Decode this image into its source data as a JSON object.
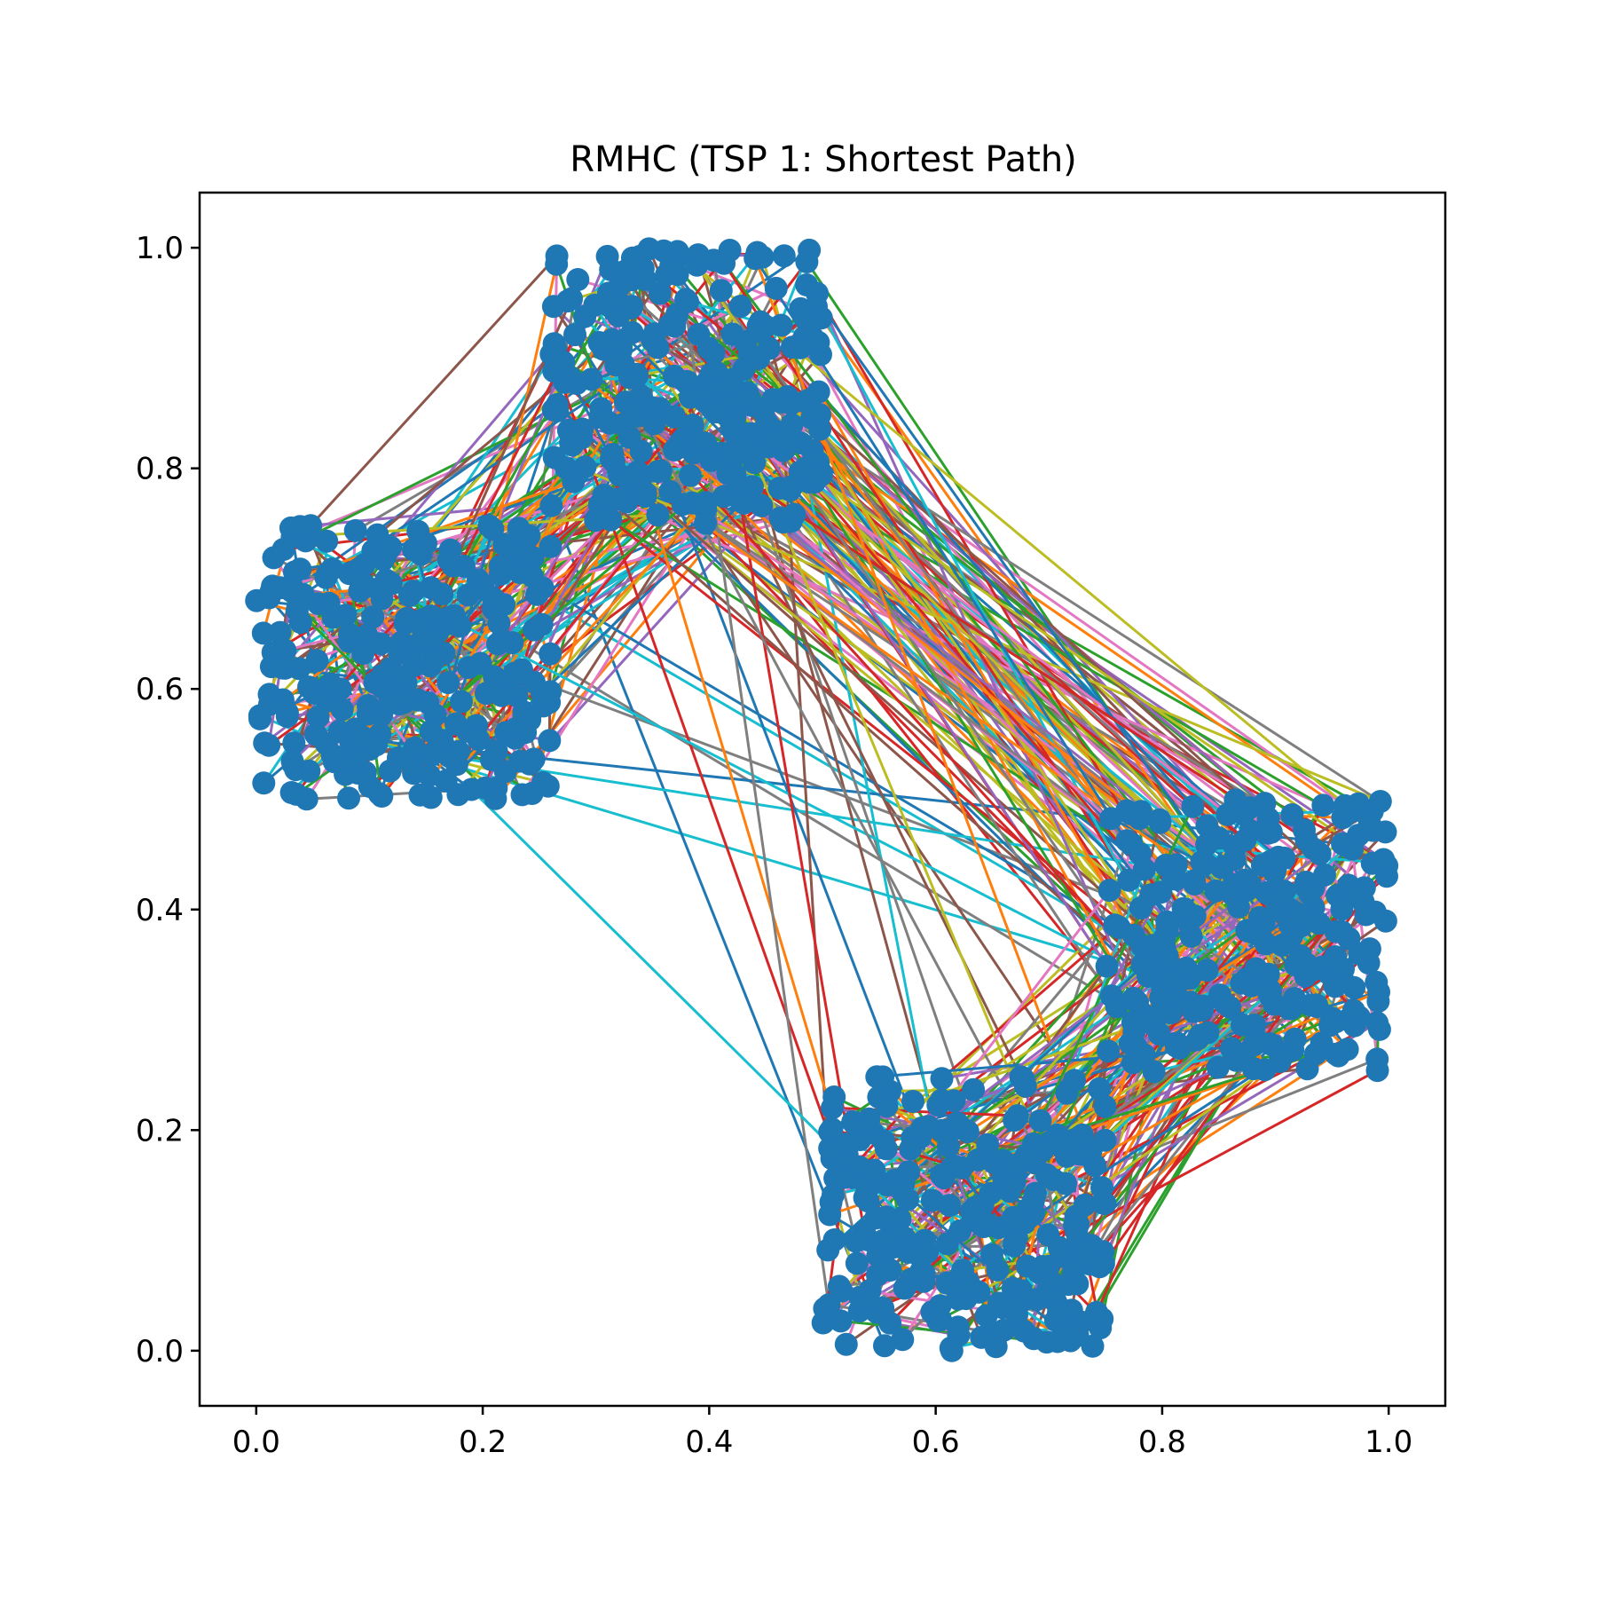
{
  "chart_data": {
    "type": "line",
    "title": "RMHC (TSP 1: Shortest Path)",
    "xlabel": "",
    "ylabel": "",
    "xlim": [
      -0.05,
      1.05
    ],
    "ylim": [
      -0.05,
      1.05
    ],
    "x_ticks": [
      "0.0",
      "0.2",
      "0.4",
      "0.6",
      "0.8",
      "1.0"
    ],
    "y_ticks": [
      "0.0",
      "0.2",
      "0.4",
      "0.6",
      "0.8",
      "1.0"
    ],
    "x_tick_values": [
      0.0,
      0.2,
      0.4,
      0.6,
      0.8,
      1.0
    ],
    "y_tick_values": [
      0.0,
      0.2,
      0.4,
      0.6,
      0.8,
      1.0
    ],
    "grid": false,
    "legend": "none",
    "marker_color": "#1f77b4",
    "segment_colors": [
      "#1f77b4",
      "#ff7f0e",
      "#2ca02c",
      "#d62728",
      "#9467bd",
      "#8c564b",
      "#e377c2",
      "#7f7f7f",
      "#bcbd22",
      "#17becf"
    ],
    "clusters": [
      {
        "name_hint": "left",
        "x_range": [
          0.0,
          0.26
        ],
        "y_range": [
          0.5,
          0.75
        ],
        "count": 250
      },
      {
        "name_hint": "top",
        "x_range": [
          0.26,
          0.5
        ],
        "y_range": [
          0.75,
          1.0
        ],
        "count": 250
      },
      {
        "name_hint": "right",
        "x_range": [
          0.75,
          1.0
        ],
        "y_range": [
          0.25,
          0.5
        ],
        "count": 250
      },
      {
        "name_hint": "bottom",
        "x_range": [
          0.5,
          0.75
        ],
        "y_range": [
          0.0,
          0.25
        ],
        "count": 250
      }
    ]
  }
}
